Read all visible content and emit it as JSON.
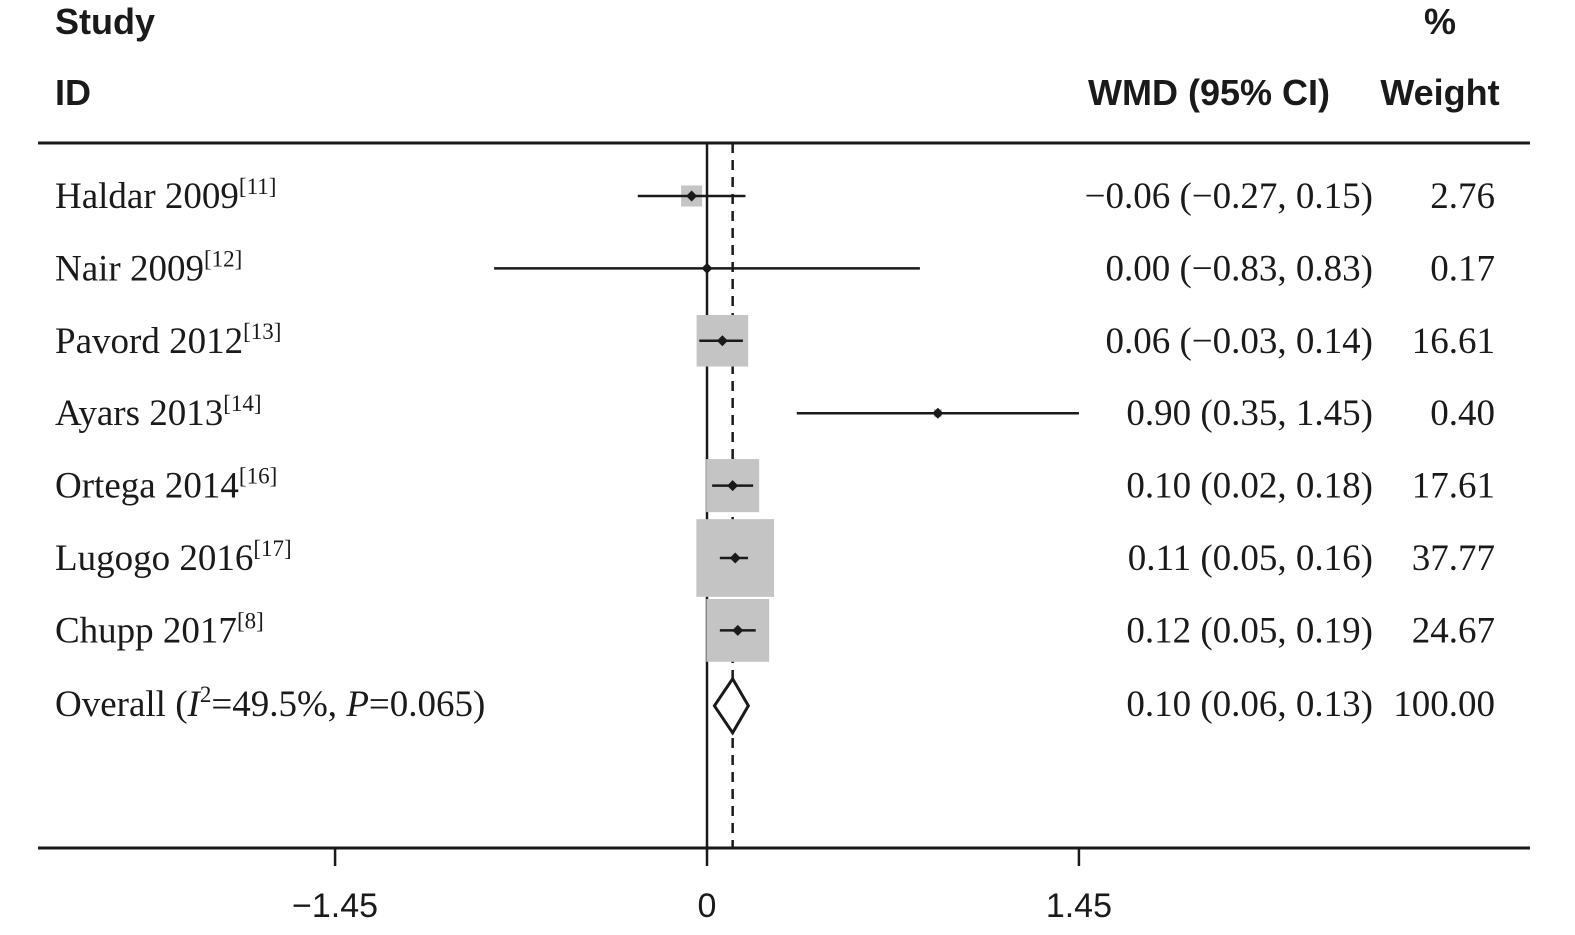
{
  "header": {
    "study": "Study",
    "id": "ID",
    "effect": "WMD (95% CI)",
    "pct": "%",
    "weight": "Weight"
  },
  "chart_data": {
    "type": "forest",
    "measure": "WMD",
    "null_line": 0,
    "xlim": [
      -2.3,
      2.3
    ],
    "xticks": [
      -1.45,
      0,
      1.45
    ],
    "xtick_labels": [
      "−1.45",
      "0",
      "1.45"
    ],
    "studies": [
      {
        "name": "Haldar 2009",
        "ref": "[11]",
        "wmd": -0.06,
        "lo": -0.27,
        "hi": 0.15,
        "weight": 2.76,
        "ci_text": "−0.06 (−0.27, 0.15)",
        "weight_text": "2.76"
      },
      {
        "name": "Nair 2009",
        "ref": "[12]",
        "wmd": 0.0,
        "lo": -0.83,
        "hi": 0.83,
        "weight": 0.17,
        "ci_text": "0.00 (−0.83, 0.83)",
        "weight_text": "0.17"
      },
      {
        "name": "Pavord 2012",
        "ref": "[13]",
        "wmd": 0.06,
        "lo": -0.03,
        "hi": 0.14,
        "weight": 16.61,
        "ci_text": "0.06 (−0.03, 0.14)",
        "weight_text": "16.61"
      },
      {
        "name": "Ayars 2013",
        "ref": "[14]",
        "wmd": 0.9,
        "lo": 0.35,
        "hi": 1.45,
        "weight": 0.4,
        "ci_text": "0.90 (0.35, 1.45)",
        "weight_text": "0.40"
      },
      {
        "name": "Ortega 2014",
        "ref": "[16]",
        "wmd": 0.1,
        "lo": 0.02,
        "hi": 0.18,
        "weight": 17.61,
        "ci_text": "0.10 (0.02, 0.18)",
        "weight_text": "17.61"
      },
      {
        "name": "Lugogo 2016",
        "ref": "[17]",
        "wmd": 0.11,
        "lo": 0.05,
        "hi": 0.16,
        "weight": 37.77,
        "ci_text": "0.11 (0.05, 0.16)",
        "weight_text": "37.77"
      },
      {
        "name": "Chupp 2017",
        "ref": "[8]",
        "wmd": 0.12,
        "lo": 0.05,
        "hi": 0.19,
        "weight": 24.67,
        "ci_text": "0.12 (0.05, 0.19)",
        "weight_text": "24.67"
      }
    ],
    "overall": {
      "label_prefix": "Overall (",
      "i_symbol": "I",
      "i_sup": "2",
      "i_value": "=49.5%, ",
      "p_symbol": "P",
      "p_value": "=0.065)",
      "wmd": 0.1,
      "lo": 0.06,
      "hi": 0.13,
      "ci_text": "0.10 (0.06, 0.13)",
      "weight_text": "100.00"
    },
    "colors": {
      "box": "#c4c4c4",
      "line": "#1a1a1a"
    }
  }
}
